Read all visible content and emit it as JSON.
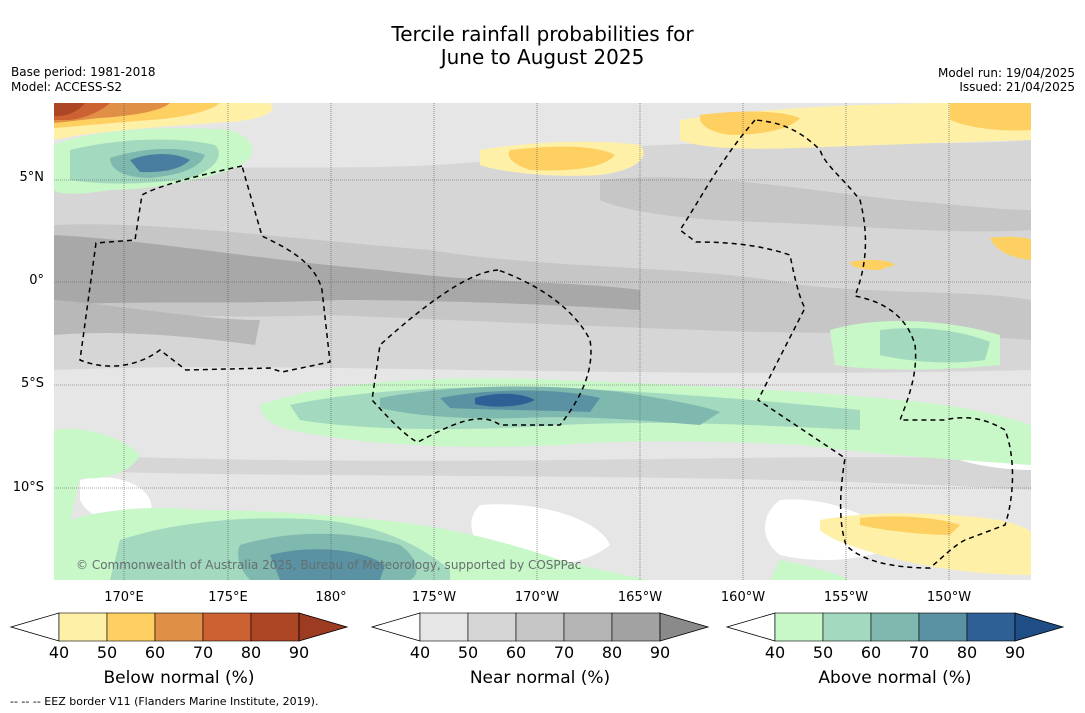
{
  "title": {
    "line1": "Tercile rainfall probabilities for",
    "line2": "June to August 2025"
  },
  "meta_left": {
    "base_period": "Base period: 1981-2018",
    "model": "Model: ACCESS-S2"
  },
  "meta_right": {
    "model_run": "Model run: 19/04/2025",
    "issued": "Issued: 21/04/2025"
  },
  "lat_labels": [
    "5°N",
    "0°",
    "5°S",
    "10°S"
  ],
  "lon_labels": [
    "170°E",
    "175°E",
    "180°",
    "175°W",
    "170°W",
    "165°W",
    "160°W",
    "155°W",
    "150°W"
  ],
  "copyright": "© Commonwealth of Australia 2025, Bureau of Meteorology, supported by COSPPac",
  "colorbars": [
    {
      "label": "Below normal (%)",
      "ticks": [
        "40",
        "50",
        "60",
        "70",
        "80",
        "90"
      ],
      "colors": [
        "#fff0a8",
        "#fdd061",
        "#e09046",
        "#cc6232",
        "#ad4624"
      ],
      "extend": "#9c3a22"
    },
    {
      "label": "Near normal (%)",
      "ticks": [
        "40",
        "50",
        "60",
        "70",
        "80",
        "90"
      ],
      "colors": [
        "#e6e6e6",
        "#d6d6d6",
        "#c6c6c6",
        "#b4b4b4",
        "#a2a2a2"
      ],
      "extend": "#8a8a8a"
    },
    {
      "label": "Above normal (%)",
      "ticks": [
        "40",
        "50",
        "60",
        "70",
        "80",
        "90"
      ],
      "colors": [
        "#c8f7c8",
        "#a2d9bf",
        "#7fb8ae",
        "#5a92a4",
        "#2e6096"
      ],
      "extend": "#1f4d86"
    }
  ],
  "footer": "--  --  -- EEZ border V11 (Flanders Marine Institute, 2019).",
  "colors": {
    "grid": "#555555",
    "eez": "#000000"
  }
}
